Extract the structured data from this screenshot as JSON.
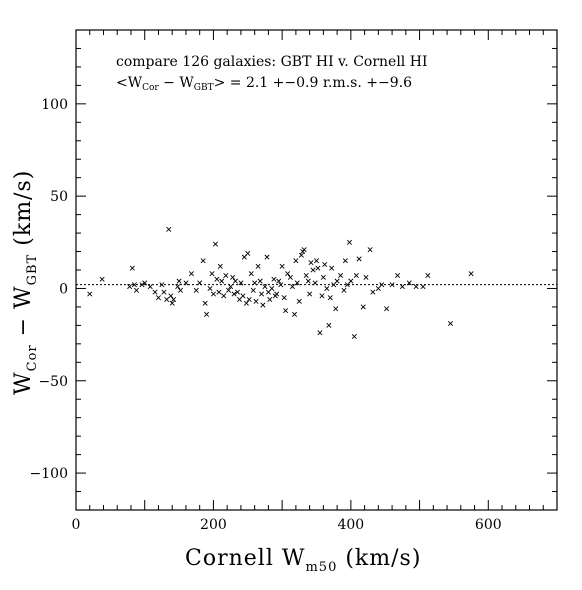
{
  "chart_data": {
    "type": "scatter",
    "annotation": {
      "line1": "compare 126 galaxies: GBT HI v. Cornell HI",
      "line2_prefix": "<W",
      "line2_sub1": "Cor",
      "line2_mid": " − W",
      "line2_sub2": "GBT",
      "line2_suffix": "> = 2.1 +−0.9   r.m.s. +−9.6"
    },
    "xlabel": {
      "main": "Cornell W",
      "sub": "m50",
      "unit": " (km/s)"
    },
    "ylabel": {
      "main1": "W",
      "sub1": "Cor",
      "mid": " − W",
      "sub2": "GBT",
      "unit": " (km/s)"
    },
    "xlim": [
      0,
      700
    ],
    "ylim": [
      -120,
      140
    ],
    "x_ticks": [
      0,
      200,
      400,
      600
    ],
    "y_ticks": [
      -100,
      -50,
      0,
      50,
      100
    ],
    "x_tick_labels": [
      "0",
      "200",
      "400",
      "600"
    ],
    "y_tick_labels": [
      "−100",
      "−50",
      "0",
      "50",
      "100"
    ],
    "reference_line_y": 2.1,
    "marker": "x",
    "points": [
      [
        20,
        -3
      ],
      [
        38,
        5
      ],
      [
        78,
        1
      ],
      [
        82,
        11
      ],
      [
        85,
        2
      ],
      [
        88,
        -1
      ],
      [
        96,
        2
      ],
      [
        100,
        3
      ],
      [
        108,
        1
      ],
      [
        115,
        -2
      ],
      [
        120,
        -5
      ],
      [
        125,
        2
      ],
      [
        128,
        -2
      ],
      [
        132,
        -6
      ],
      [
        135,
        32
      ],
      [
        138,
        -4
      ],
      [
        140,
        -8
      ],
      [
        142,
        -6
      ],
      [
        148,
        1
      ],
      [
        150,
        4
      ],
      [
        152,
        -1
      ],
      [
        160,
        3
      ],
      [
        168,
        8
      ],
      [
        175,
        -1
      ],
      [
        180,
        3
      ],
      [
        185,
        15
      ],
      [
        188,
        -8
      ],
      [
        190,
        -14
      ],
      [
        195,
        0
      ],
      [
        198,
        8
      ],
      [
        200,
        -3
      ],
      [
        203,
        24
      ],
      [
        205,
        5
      ],
      [
        208,
        -2
      ],
      [
        210,
        12
      ],
      [
        212,
        4
      ],
      [
        215,
        -4
      ],
      [
        218,
        7
      ],
      [
        222,
        -1
      ],
      [
        225,
        1
      ],
      [
        228,
        6
      ],
      [
        230,
        -3
      ],
      [
        232,
        4
      ],
      [
        235,
        -2
      ],
      [
        238,
        -6
      ],
      [
        240,
        3
      ],
      [
        243,
        -4
      ],
      [
        245,
        17
      ],
      [
        248,
        -8
      ],
      [
        250,
        19
      ],
      [
        252,
        -6
      ],
      [
        255,
        8
      ],
      [
        258,
        -1
      ],
      [
        260,
        3
      ],
      [
        262,
        -7
      ],
      [
        265,
        12
      ],
      [
        268,
        4
      ],
      [
        270,
        -3
      ],
      [
        272,
        -9
      ],
      [
        275,
        1
      ],
      [
        278,
        17
      ],
      [
        280,
        -2
      ],
      [
        282,
        -6
      ],
      [
        285,
        0
      ],
      [
        288,
        5
      ],
      [
        290,
        -4
      ],
      [
        292,
        -3
      ],
      [
        295,
        4
      ],
      [
        298,
        2
      ],
      [
        300,
        12
      ],
      [
        303,
        -5
      ],
      [
        305,
        -12
      ],
      [
        308,
        8
      ],
      [
        312,
        6
      ],
      [
        315,
        1
      ],
      [
        318,
        -14
      ],
      [
        320,
        15
      ],
      [
        322,
        3
      ],
      [
        325,
        -7
      ],
      [
        328,
        18
      ],
      [
        330,
        20
      ],
      [
        332,
        21
      ],
      [
        335,
        7
      ],
      [
        338,
        4
      ],
      [
        340,
        -3
      ],
      [
        342,
        14
      ],
      [
        345,
        10
      ],
      [
        348,
        3
      ],
      [
        350,
        15
      ],
      [
        352,
        11
      ],
      [
        355,
        -24
      ],
      [
        358,
        -4
      ],
      [
        360,
        6
      ],
      [
        362,
        13
      ],
      [
        365,
        0
      ],
      [
        368,
        -20
      ],
      [
        370,
        -5
      ],
      [
        372,
        11
      ],
      [
        375,
        2
      ],
      [
        378,
        -11
      ],
      [
        380,
        4
      ],
      [
        385,
        7
      ],
      [
        390,
        -1
      ],
      [
        392,
        15
      ],
      [
        395,
        2
      ],
      [
        398,
        25
      ],
      [
        400,
        4
      ],
      [
        405,
        -26
      ],
      [
        408,
        7
      ],
      [
        412,
        16
      ],
      [
        418,
        -10
      ],
      [
        422,
        6
      ],
      [
        428,
        21
      ],
      [
        432,
        -2
      ],
      [
        440,
        0
      ],
      [
        445,
        2
      ],
      [
        452,
        -11
      ],
      [
        460,
        2
      ],
      [
        468,
        7
      ],
      [
        475,
        1
      ],
      [
        485,
        3
      ],
      [
        495,
        1
      ],
      [
        505,
        1
      ],
      [
        512,
        7
      ],
      [
        545,
        -19
      ],
      [
        575,
        8
      ]
    ]
  }
}
